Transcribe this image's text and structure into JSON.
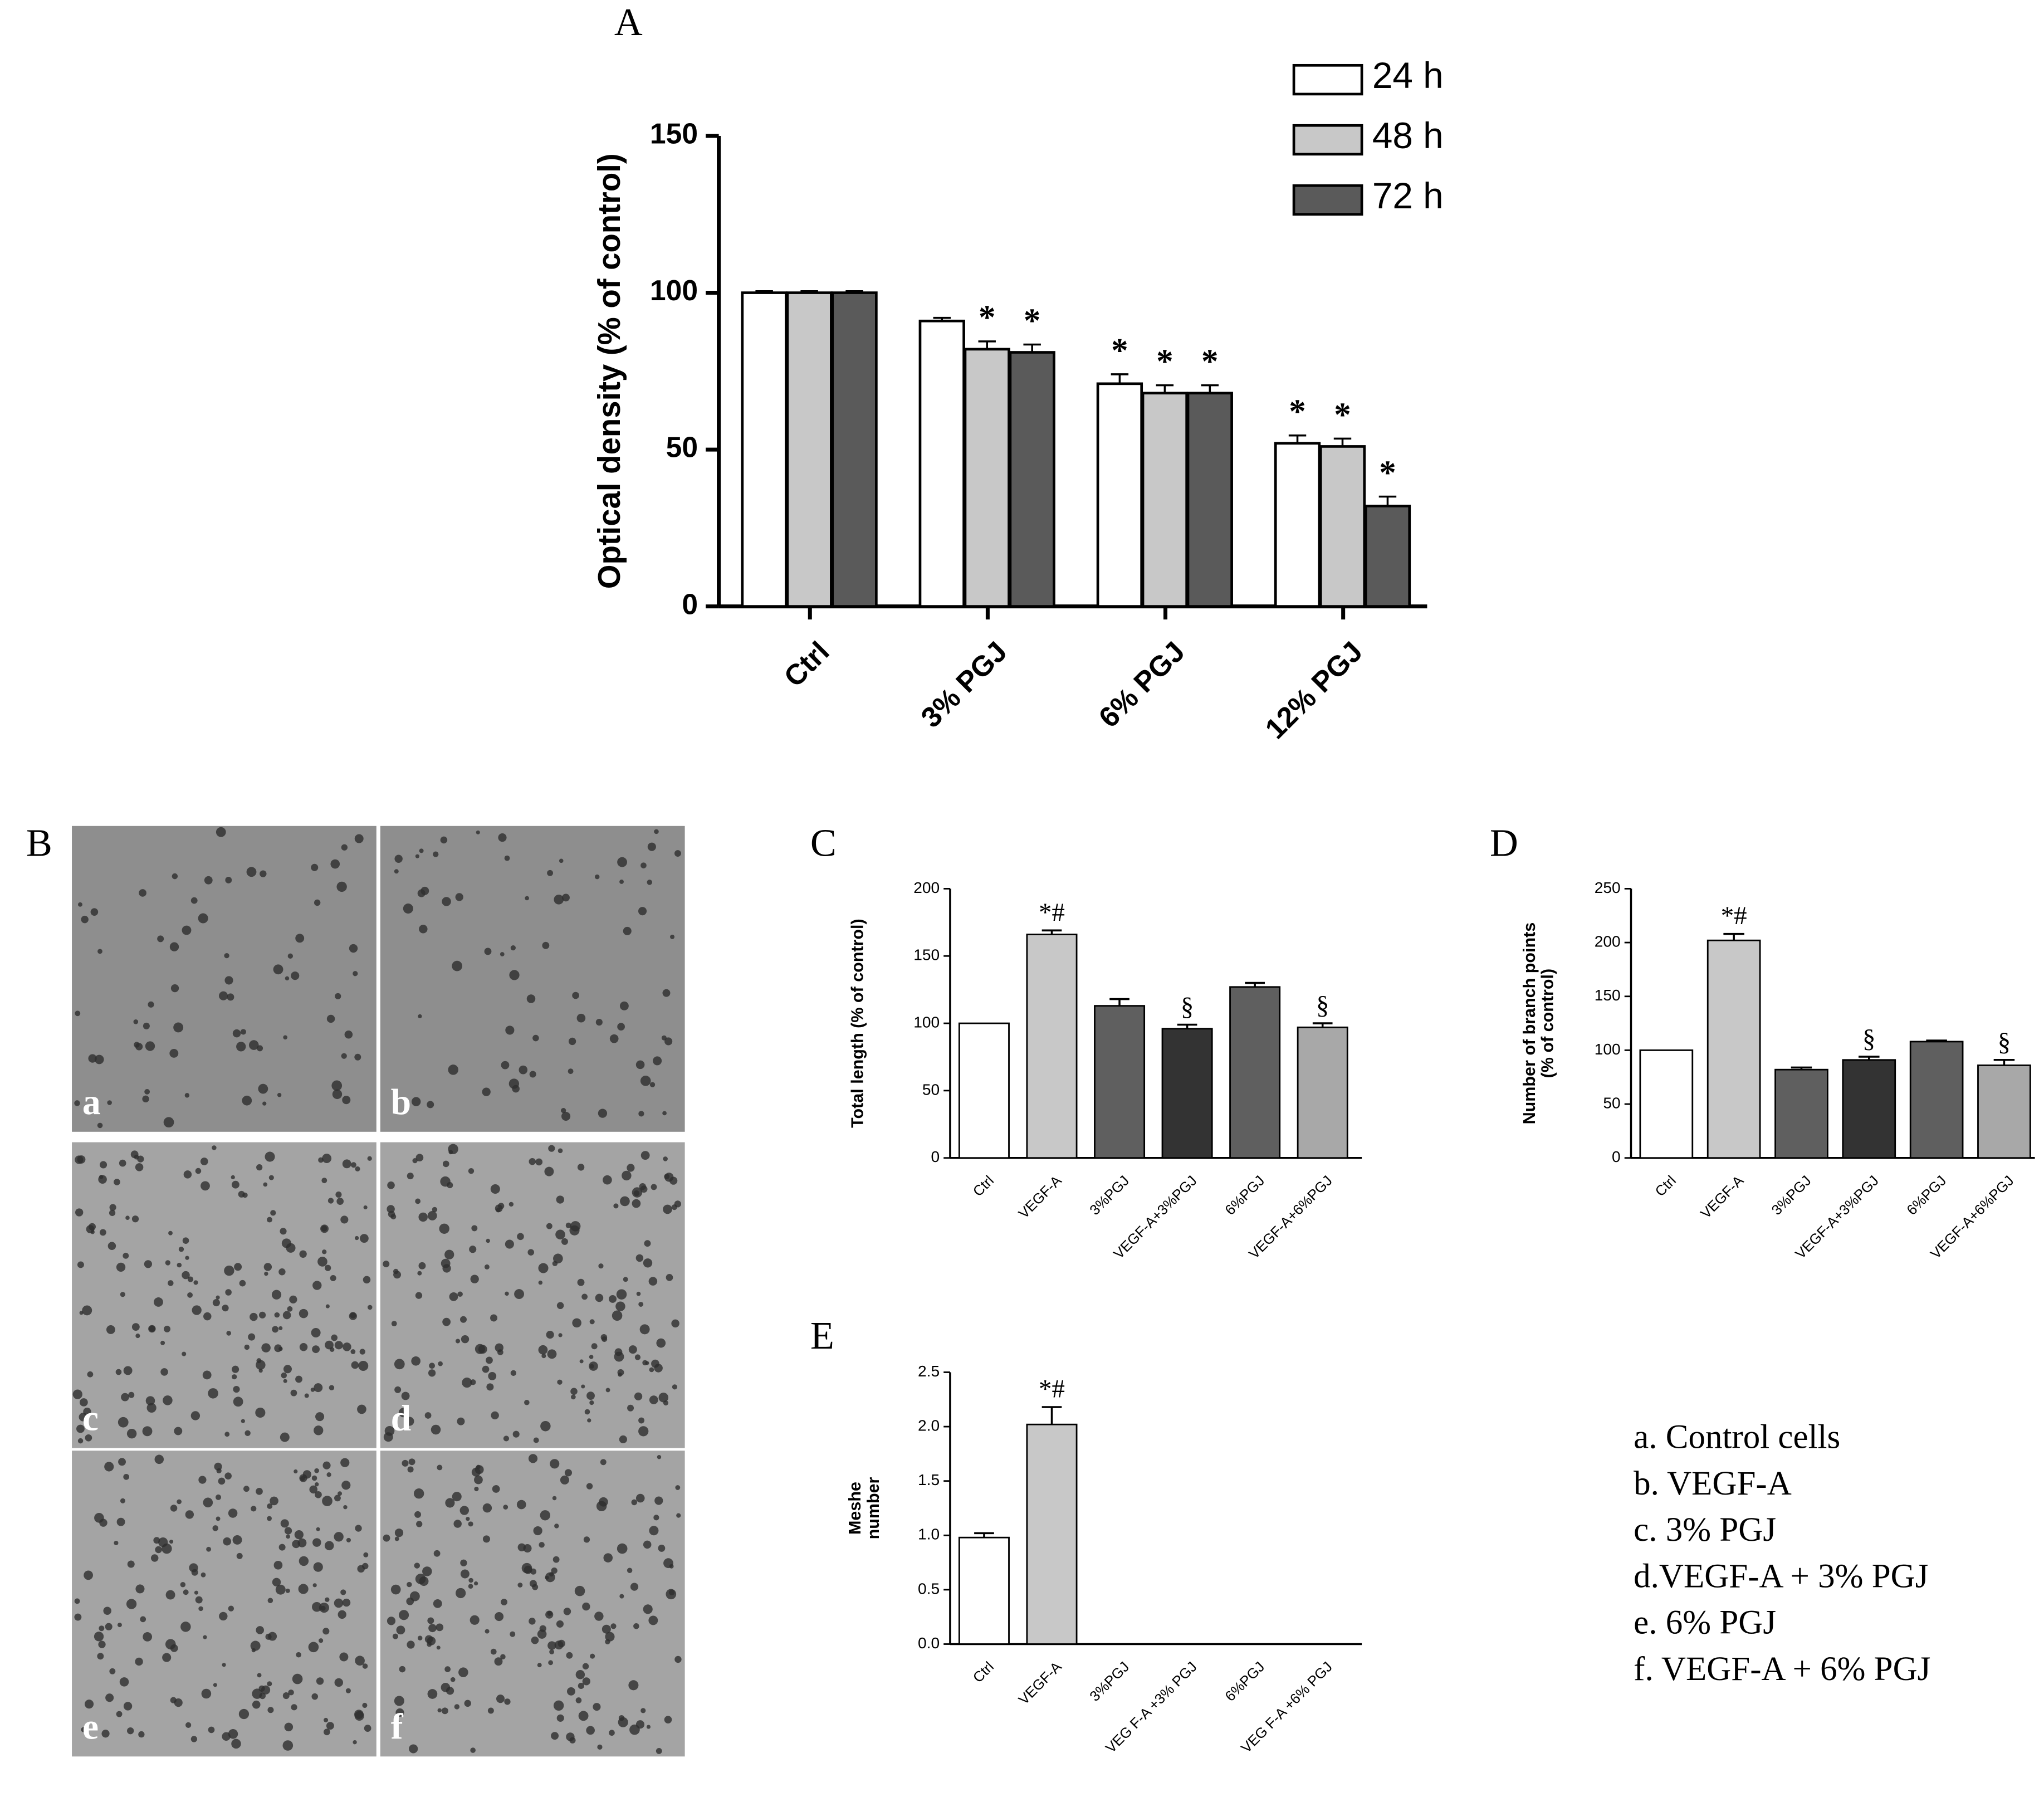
{
  "chart_data": [
    {
      "type": "bar",
      "title": "A",
      "ylabel": "Optical density (% of control)",
      "categories": [
        "Ctrl",
        "3% PGJ",
        "6% PGJ",
        "12% PGJ"
      ],
      "series": [
        {
          "name": "24 h",
          "color": "#ffffff",
          "values": [
            100,
            91,
            71,
            52
          ],
          "errors": [
            0.5,
            1,
            3,
            2.5
          ],
          "significance": [
            null,
            null,
            "*",
            "*"
          ]
        },
        {
          "name": "48 h",
          "color": "#c8c8c8",
          "values": [
            100,
            82,
            68,
            51
          ],
          "errors": [
            0.5,
            2.5,
            2.5,
            2.5
          ],
          "significance": [
            null,
            "*",
            "*",
            "*"
          ]
        },
        {
          "name": "72 h",
          "color": "#5a5a5a",
          "values": [
            100,
            81,
            68,
            32
          ],
          "errors": [
            0.5,
            2.5,
            2.5,
            3
          ],
          "significance": [
            null,
            "*",
            "*",
            "*"
          ]
        }
      ],
      "ylim": [
        0,
        150
      ],
      "yticks": [
        0,
        50,
        100,
        150
      ]
    },
    {
      "type": "bar",
      "title": "C",
      "ylabel": "Total length (% of control)",
      "categories": [
        "Ctrl",
        "VEGF-A",
        "3%PGJ",
        "VEGF-A+3%PGJ",
        "6%PGJ",
        "VEGF-A+6%PGJ"
      ],
      "values": [
        100,
        166,
        113,
        96,
        127,
        97
      ],
      "errors": [
        0,
        3,
        5,
        3,
        3,
        3
      ],
      "colors": [
        "#ffffff",
        "#c8c8c8",
        "#5f5f5f",
        "#333333",
        "#5f5f5f",
        "#a8a8a8"
      ],
      "significance": [
        null,
        "*#",
        null,
        "§",
        null,
        "§"
      ],
      "ylim": [
        0,
        200
      ],
      "yticks": [
        0,
        50,
        100,
        150,
        200
      ]
    },
    {
      "type": "bar",
      "title": "D",
      "ylabel": [
        "Number of branch points",
        "(% of control)"
      ],
      "categories": [
        "Ctrl",
        "VEGF-A",
        "3%PGJ",
        "VEGF-A+3%PGJ",
        "6%PGJ",
        "VEGF-A+6%PGJ"
      ],
      "values": [
        100,
        202,
        82,
        91,
        108,
        86
      ],
      "errors": [
        0,
        6,
        2,
        3,
        1,
        5
      ],
      "colors": [
        "#ffffff",
        "#c8c8c8",
        "#5f5f5f",
        "#333333",
        "#5f5f5f",
        "#a8a8a8"
      ],
      "significance": [
        null,
        "*#",
        null,
        "§",
        null,
        "§"
      ],
      "ylim": [
        0,
        250
      ],
      "yticks": [
        0,
        50,
        100,
        150,
        200,
        250
      ]
    },
    {
      "type": "bar",
      "title": "E",
      "ylabel": [
        "Meshe",
        "number"
      ],
      "categories": [
        "Ctrl",
        "VEGF-A",
        "3%PGJ",
        "VEG F-A +3% PGJ",
        "6%PGJ",
        "VEG F-A +6% PGJ"
      ],
      "values": [
        0.98,
        2.02,
        0,
        0,
        0,
        0
      ],
      "errors": [
        0.04,
        0.16,
        0,
        0,
        0,
        0
      ],
      "colors": [
        "#ffffff",
        "#c8c8c8",
        "#5f5f5f",
        "#333333",
        "#5f5f5f",
        "#a8a8a8"
      ],
      "significance": [
        null,
        "*#",
        null,
        null,
        null,
        null
      ],
      "ylim": [
        0,
        2.5
      ],
      "yticks": [
        {
          "value": 0,
          "label": "0.0"
        },
        0.5,
        {
          "value": 1,
          "label": "1.0"
        },
        1.5,
        {
          "value": 2,
          "label": "2.0"
        },
        2.5
      ]
    }
  ],
  "panel_b": {
    "label": "B",
    "images": [
      "a",
      "b",
      "c",
      "d",
      "e",
      "f"
    ]
  },
  "legend_list": [
    "a. Control cells",
    "b. VEGF-A",
    "c. 3% PGJ",
    "d.VEGF-A +  3% PGJ",
    "e. 6% PGJ",
    "f.  VEGF-A + 6% PGJ"
  ]
}
